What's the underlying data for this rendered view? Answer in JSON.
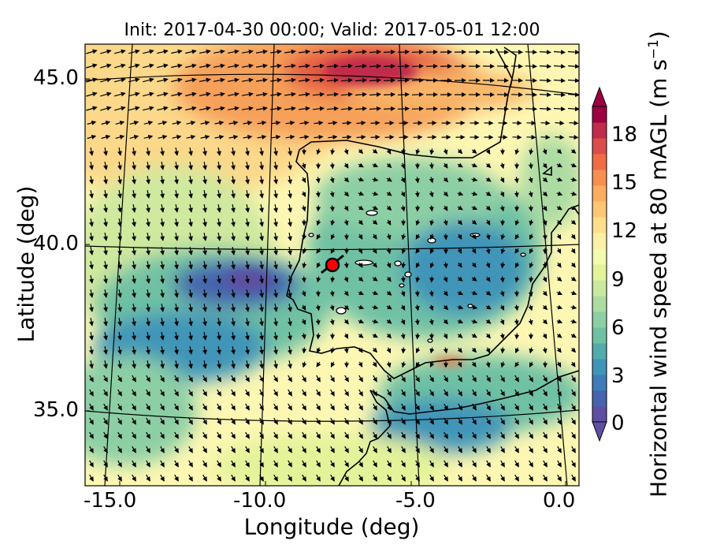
{
  "map": {
    "title": "Init: 2017-04-30 00:00; Valid: 2017-05-01 12:00",
    "xlabel": "Longitude (deg)",
    "ylabel": "Latitude (deg)",
    "lon_ticks": [
      "-15.0",
      "-10.0",
      "-5.0",
      "0.0"
    ],
    "lat_ticks": [
      "45.0",
      "40.0",
      "35.0"
    ],
    "colorbar_label": "Horizontal wind speed at 80 mAGL (m s",
    "colorbar_label_exp": "−1",
    "colorbar_label_end": ")",
    "colorbar_ticks": [
      "0",
      "3",
      "6",
      "9",
      "12",
      "15",
      "18"
    ],
    "colorbar_colors": [
      "#5e4fa2",
      "#4564ad",
      "#3f7cb8",
      "#3f95b8",
      "#52abad",
      "#6fc1a4",
      "#8ccfa4",
      "#acdca3",
      "#c9e99e",
      "#e3f399",
      "#f4fab0",
      "#fdf0a6",
      "#fede8c",
      "#fdc676",
      "#fcad61",
      "#f88e52",
      "#ef6c44",
      "#dd4c4c",
      "#c12c4b",
      "#9e0142"
    ],
    "marker_color": "#ff0000",
    "wind_vectors": "yes"
  }
}
